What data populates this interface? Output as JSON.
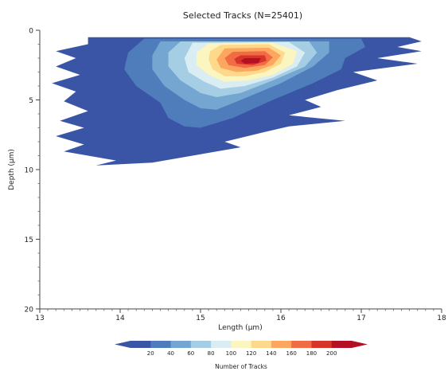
{
  "chart_data": {
    "type": "heatmap",
    "title": "Selected Tracks  (N=25401)",
    "xlabel": "Length (µm)",
    "ylabel": "Depth (µm)",
    "xlim": [
      13,
      18
    ],
    "ylim": [
      0,
      20
    ],
    "y_inverted": true,
    "x_ticks": [
      "13",
      "14",
      "15",
      "16",
      "17",
      "18"
    ],
    "y_ticks": [
      "0",
      "5",
      "10",
      "15",
      "20"
    ],
    "grid": false,
    "colorbar": {
      "label": "Number of Tracks",
      "orientation": "horizontal",
      "placement": "bottom",
      "extend": "both",
      "ticks": [
        "20",
        "40",
        "60",
        "80",
        "100",
        "120",
        "140",
        "160",
        "180",
        "200"
      ],
      "colors": [
        "#3a55a5",
        "#4f7dbb",
        "#74a6d1",
        "#a5cde3",
        "#d9edf3",
        "#fbf6c0",
        "#fed98b",
        "#fca65f",
        "#f16c45",
        "#d7342a",
        "#b50f26"
      ]
    },
    "density_peak": {
      "length": 15.6,
      "depth": 2.2,
      "count": 200
    },
    "contours": [
      {
        "level": 0,
        "points": [
          [
            13.6,
            0.5
          ],
          [
            17.6,
            0.5
          ],
          [
            17.75,
            0.8
          ],
          [
            17.45,
            1.2
          ],
          [
            17.75,
            1.5
          ],
          [
            17.2,
            2.0
          ],
          [
            17.7,
            2.4
          ],
          [
            16.9,
            3.0
          ],
          [
            17.2,
            3.6
          ],
          [
            16.7,
            4.3
          ],
          [
            16.3,
            5.0
          ],
          [
            16.5,
            5.5
          ],
          [
            16.1,
            6.1
          ],
          [
            16.8,
            6.5
          ],
          [
            16.1,
            6.9
          ],
          [
            15.8,
            7.3
          ],
          [
            15.3,
            8.0
          ],
          [
            15.5,
            8.4
          ],
          [
            14.9,
            9.0
          ],
          [
            14.4,
            9.5
          ],
          [
            13.7,
            9.7
          ],
          [
            13.95,
            9.35
          ],
          [
            13.3,
            8.7
          ],
          [
            13.55,
            8.2
          ],
          [
            13.2,
            7.6
          ],
          [
            13.55,
            7.0
          ],
          [
            13.25,
            6.5
          ],
          [
            13.6,
            5.8
          ],
          [
            13.3,
            5.1
          ],
          [
            13.45,
            4.4
          ],
          [
            13.15,
            3.8
          ],
          [
            13.5,
            3.2
          ],
          [
            13.2,
            2.6
          ],
          [
            13.45,
            2.0
          ],
          [
            13.2,
            1.5
          ],
          [
            13.6,
            1.0
          ]
        ]
      },
      {
        "level": 20,
        "points": [
          [
            14.3,
            0.6
          ],
          [
            17.0,
            0.6
          ],
          [
            17.05,
            1.2
          ],
          [
            16.8,
            2.0
          ],
          [
            16.75,
            2.8
          ],
          [
            16.4,
            3.8
          ],
          [
            15.9,
            5.0
          ],
          [
            15.4,
            6.3
          ],
          [
            15.0,
            7.0
          ],
          [
            14.8,
            6.9
          ],
          [
            14.6,
            6.3
          ],
          [
            14.5,
            5.2
          ],
          [
            14.2,
            4.0
          ],
          [
            14.05,
            2.8
          ],
          [
            14.1,
            1.6
          ]
        ]
      },
      {
        "level": 40,
        "points": [
          [
            14.5,
            0.8
          ],
          [
            16.6,
            0.8
          ],
          [
            16.6,
            1.6
          ],
          [
            16.4,
            2.6
          ],
          [
            16.0,
            3.8
          ],
          [
            15.5,
            5.0
          ],
          [
            15.2,
            5.7
          ],
          [
            15.0,
            5.6
          ],
          [
            14.8,
            5.0
          ],
          [
            14.55,
            4.0
          ],
          [
            14.4,
            2.8
          ],
          [
            14.4,
            1.8
          ]
        ]
      },
      {
        "level": 60,
        "points": [
          [
            14.75,
            0.8
          ],
          [
            16.35,
            0.8
          ],
          [
            16.45,
            1.6
          ],
          [
            16.3,
            2.6
          ],
          [
            15.9,
            3.6
          ],
          [
            15.5,
            4.5
          ],
          [
            15.2,
            4.8
          ],
          [
            15.0,
            4.5
          ],
          [
            14.75,
            3.6
          ],
          [
            14.6,
            2.6
          ],
          [
            14.6,
            1.6
          ]
        ]
      },
      {
        "level": 80,
        "points": [
          [
            14.9,
            0.9
          ],
          [
            16.1,
            0.85
          ],
          [
            16.3,
            1.6
          ],
          [
            16.2,
            2.6
          ],
          [
            15.9,
            3.4
          ],
          [
            15.55,
            4.0
          ],
          [
            15.25,
            4.2
          ],
          [
            15.05,
            3.7
          ],
          [
            14.85,
            3.0
          ],
          [
            14.8,
            2.0
          ]
        ]
      },
      {
        "level": 100,
        "points": [
          [
            15.1,
            0.95
          ],
          [
            15.9,
            0.9
          ],
          [
            16.2,
            1.5
          ],
          [
            16.15,
            2.4
          ],
          [
            15.9,
            3.2
          ],
          [
            15.6,
            3.6
          ],
          [
            15.3,
            3.7
          ],
          [
            15.1,
            3.2
          ],
          [
            14.95,
            2.5
          ],
          [
            14.95,
            1.6
          ]
        ]
      },
      {
        "level": 120,
        "points": [
          [
            15.25,
            1.05
          ],
          [
            15.85,
            1.0
          ],
          [
            16.05,
            1.6
          ],
          [
            16.0,
            2.4
          ],
          [
            15.8,
            3.0
          ],
          [
            15.55,
            3.3
          ],
          [
            15.3,
            3.3
          ],
          [
            15.15,
            2.8
          ],
          [
            15.1,
            2.1
          ],
          [
            15.12,
            1.5
          ]
        ]
      },
      {
        "level": 140,
        "points": [
          [
            15.3,
            1.3
          ],
          [
            15.85,
            1.25
          ],
          [
            16.0,
            1.8
          ],
          [
            15.9,
            2.5
          ],
          [
            15.7,
            2.9
          ],
          [
            15.45,
            3.0
          ],
          [
            15.25,
            2.7
          ],
          [
            15.2,
            2.1
          ]
        ]
      },
      {
        "level": 160,
        "points": [
          [
            15.4,
            1.55
          ],
          [
            15.8,
            1.5
          ],
          [
            15.9,
            1.95
          ],
          [
            15.8,
            2.5
          ],
          [
            15.55,
            2.7
          ],
          [
            15.35,
            2.5
          ],
          [
            15.3,
            2.0
          ]
        ]
      },
      {
        "level": 180,
        "points": [
          [
            15.5,
            1.8
          ],
          [
            15.8,
            1.8
          ],
          [
            15.82,
            2.2
          ],
          [
            15.65,
            2.5
          ],
          [
            15.45,
            2.4
          ],
          [
            15.42,
            2.05
          ]
        ]
      },
      {
        "level": 200,
        "points": [
          [
            15.55,
            2.0
          ],
          [
            15.75,
            2.0
          ],
          [
            15.72,
            2.35
          ],
          [
            15.55,
            2.4
          ],
          [
            15.5,
            2.2
          ]
        ]
      }
    ]
  }
}
